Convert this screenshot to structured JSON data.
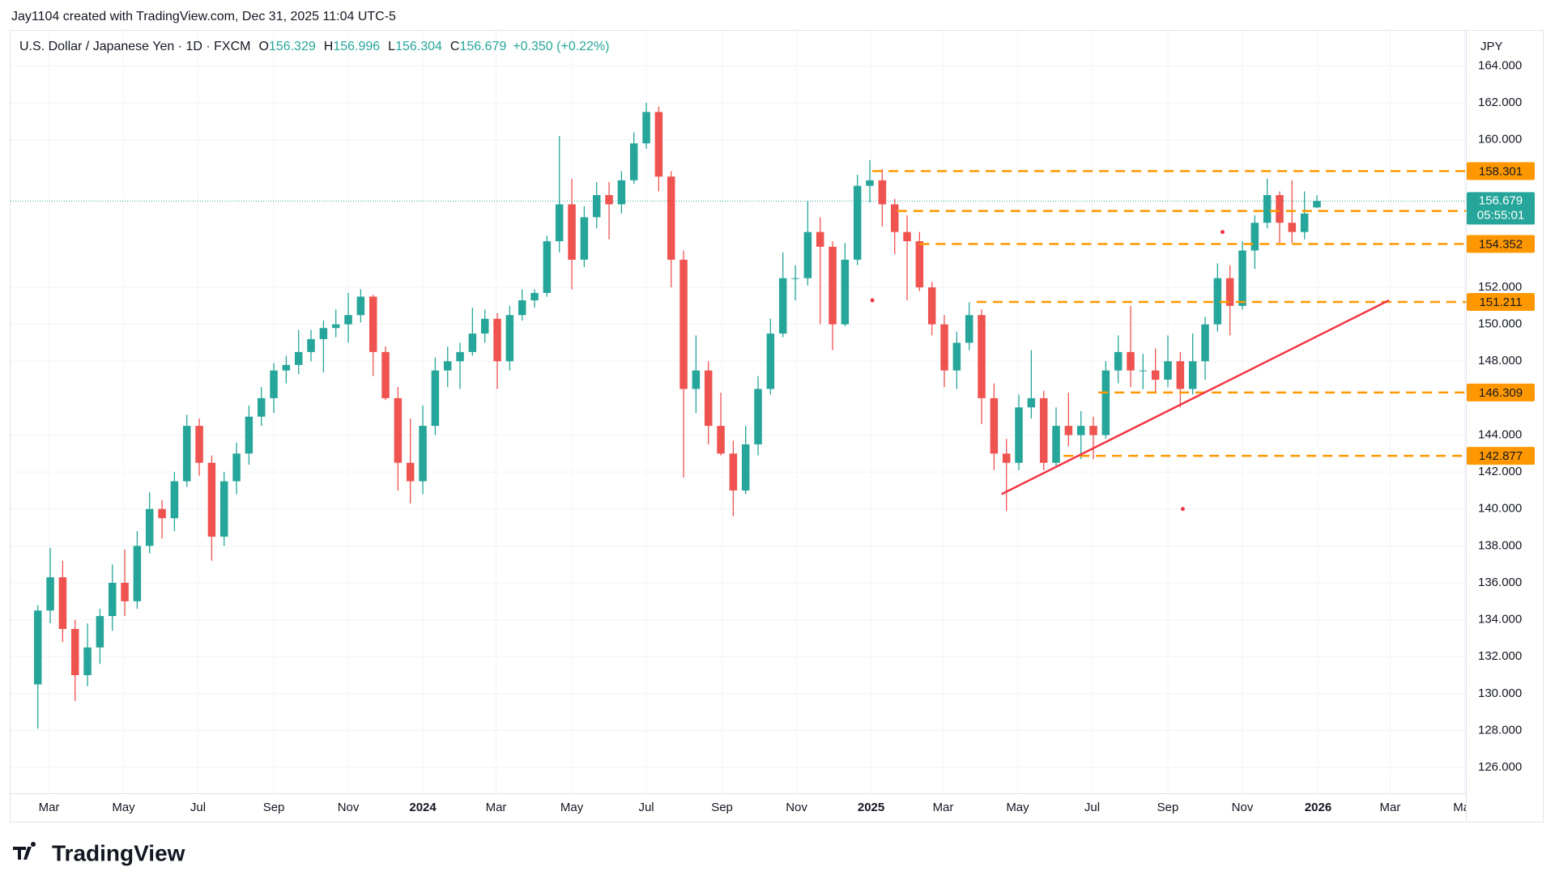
{
  "chart_data": {
    "type": "candlestick",
    "attribution": "Jay1104 created with TradingView.com, Dec 31, 2025 11:04 UTC-5",
    "title": "U.S. Dollar / Japanese Yen · 1D · FXCM",
    "ohlc": [
      {
        "label": "O",
        "value": 156.329
      },
      {
        "label": "H",
        "value": 156.996
      },
      {
        "label": "L",
        "value": 156.304
      },
      {
        "label": "C",
        "value": 156.679
      }
    ],
    "change_label": "+0.350 (+0.22%)",
    "currency": "JPY",
    "logo": "TradingView",
    "up_color": "#26a69a",
    "down_color": "#ef5350",
    "xlim": [
      -2.2,
      115
    ],
    "ylim": [
      124.6,
      165.9
    ],
    "xticks": [
      {
        "value": 0.9,
        "label": "Mar"
      },
      {
        "value": 6.9,
        "label": "May"
      },
      {
        "value": 12.9,
        "label": "Jul"
      },
      {
        "value": 19.0,
        "label": "Sep"
      },
      {
        "value": 25.0,
        "label": "Nov"
      },
      {
        "value": 31.0,
        "label": "2024"
      },
      {
        "value": 36.9,
        "label": "Mar"
      },
      {
        "value": 43.0,
        "label": "May"
      },
      {
        "value": 49.0,
        "label": "Jul"
      },
      {
        "value": 55.1,
        "label": "Sep"
      },
      {
        "value": 61.1,
        "label": "Nov"
      },
      {
        "value": 67.1,
        "label": "2025"
      },
      {
        "value": 72.9,
        "label": "Mar"
      },
      {
        "value": 78.9,
        "label": "May"
      },
      {
        "value": 84.9,
        "label": "Jul"
      },
      {
        "value": 91.0,
        "label": "Sep"
      },
      {
        "value": 97.0,
        "label": "Nov"
      },
      {
        "value": 103.1,
        "label": "2026"
      },
      {
        "value": 108.9,
        "label": "Mar"
      },
      {
        "value": 114.9,
        "label": "May"
      }
    ],
    "yticks": [
      {
        "value": 164,
        "label": "164.000"
      },
      {
        "value": 162,
        "label": "162.000"
      },
      {
        "value": 160,
        "label": "160.000"
      },
      {
        "value": 152,
        "label": "152.000"
      },
      {
        "value": 150,
        "label": "150.000"
      },
      {
        "value": 148,
        "label": "148.000"
      },
      {
        "value": 144,
        "label": "144.000"
      },
      {
        "value": 142,
        "label": "142.000"
      },
      {
        "value": 140,
        "label": "140.000"
      },
      {
        "value": 138,
        "label": "138.000"
      },
      {
        "value": 136,
        "label": "136.000"
      },
      {
        "value": 134,
        "label": "134.000"
      },
      {
        "value": 132,
        "label": "132.000"
      },
      {
        "value": 130,
        "label": "130.000"
      },
      {
        "value": 128,
        "label": "128.000"
      },
      {
        "value": 126,
        "label": "126.000"
      }
    ],
    "grid": true,
    "candles": [
      [
        130.5,
        134.8,
        128.1,
        134.5
      ],
      [
        134.5,
        137.9,
        133.8,
        136.3
      ],
      [
        136.3,
        137.2,
        132.8,
        133.5
      ],
      [
        133.5,
        134.0,
        129.6,
        131.0
      ],
      [
        131.0,
        133.8,
        130.4,
        132.5
      ],
      [
        132.5,
        134.6,
        131.6,
        134.2
      ],
      [
        134.2,
        137.0,
        133.4,
        136.0
      ],
      [
        136.0,
        137.8,
        134.2,
        135.0
      ],
      [
        135.0,
        138.8,
        134.6,
        138.0
      ],
      [
        138.0,
        140.9,
        137.6,
        140.0
      ],
      [
        140.0,
        140.5,
        138.4,
        139.5
      ],
      [
        139.5,
        142.0,
        138.8,
        141.5
      ],
      [
        141.5,
        145.1,
        141.2,
        144.5
      ],
      [
        144.5,
        144.9,
        141.8,
        142.5
      ],
      [
        142.5,
        142.9,
        137.2,
        138.5
      ],
      [
        138.5,
        142.0,
        138.0,
        141.5
      ],
      [
        141.5,
        143.6,
        140.8,
        143.0
      ],
      [
        143.0,
        145.6,
        142.4,
        145.0
      ],
      [
        145.0,
        146.6,
        144.5,
        146.0
      ],
      [
        146.0,
        147.9,
        145.2,
        147.5
      ],
      [
        147.5,
        148.3,
        146.8,
        147.8
      ],
      [
        147.8,
        149.7,
        147.3,
        148.5
      ],
      [
        148.5,
        149.7,
        148.0,
        149.2
      ],
      [
        149.2,
        150.2,
        147.4,
        149.8
      ],
      [
        149.8,
        150.8,
        149.3,
        150.0
      ],
      [
        150.0,
        151.7,
        149.0,
        150.5
      ],
      [
        150.5,
        151.9,
        150.1,
        151.5
      ],
      [
        151.5,
        151.6,
        147.2,
        148.5
      ],
      [
        148.5,
        148.8,
        145.9,
        146.0
      ],
      [
        146.0,
        146.6,
        141.0,
        142.5
      ],
      [
        142.5,
        144.9,
        140.3,
        141.5
      ],
      [
        141.5,
        145.6,
        140.8,
        144.5
      ],
      [
        144.5,
        148.2,
        144.0,
        147.5
      ],
      [
        147.5,
        148.8,
        146.6,
        148.0
      ],
      [
        148.0,
        149.0,
        146.5,
        148.5
      ],
      [
        148.5,
        150.9,
        148.3,
        149.5
      ],
      [
        149.5,
        150.8,
        149.0,
        150.3
      ],
      [
        150.3,
        150.6,
        146.5,
        148.0
      ],
      [
        148.0,
        151.0,
        147.5,
        150.5
      ],
      [
        150.5,
        151.9,
        150.2,
        151.3
      ],
      [
        151.3,
        151.9,
        150.9,
        151.7
      ],
      [
        151.7,
        154.8,
        151.5,
        154.5
      ],
      [
        154.5,
        160.2,
        153.9,
        156.5
      ],
      [
        156.5,
        157.9,
        151.9,
        153.5
      ],
      [
        153.5,
        156.4,
        153.1,
        155.8
      ],
      [
        155.8,
        157.7,
        155.2,
        157.0
      ],
      [
        157.0,
        157.7,
        154.6,
        156.5
      ],
      [
        156.5,
        158.3,
        156.0,
        157.8
      ],
      [
        157.8,
        160.4,
        157.6,
        159.8
      ],
      [
        159.8,
        162.0,
        159.5,
        161.5
      ],
      [
        161.5,
        161.8,
        157.2,
        158.0
      ],
      [
        158.0,
        158.3,
        152.0,
        153.5
      ],
      [
        153.5,
        154.0,
        141.7,
        146.5
      ],
      [
        146.5,
        149.4,
        145.2,
        147.5
      ],
      [
        147.5,
        148.0,
        143.5,
        144.5
      ],
      [
        144.5,
        146.3,
        142.9,
        143.0
      ],
      [
        143.0,
        143.7,
        139.6,
        141.0
      ],
      [
        141.0,
        144.5,
        140.8,
        143.5
      ],
      [
        143.5,
        147.2,
        142.9,
        146.5
      ],
      [
        146.5,
        150.3,
        146.2,
        149.5
      ],
      [
        149.5,
        153.9,
        149.3,
        152.5
      ],
      [
        152.5,
        153.2,
        151.3,
        152.5
      ],
      [
        152.5,
        156.7,
        152.1,
        155.0
      ],
      [
        155.0,
        155.8,
        150.0,
        154.2
      ],
      [
        154.2,
        154.5,
        148.6,
        150.0
      ],
      [
        150.0,
        154.4,
        149.9,
        153.5
      ],
      [
        153.5,
        158.1,
        153.2,
        157.5
      ],
      [
        157.5,
        158.9,
        156.6,
        157.8
      ],
      [
        157.8,
        158.4,
        155.3,
        156.5
      ],
      [
        156.5,
        156.8,
        153.8,
        155.0
      ],
      [
        155.0,
        155.9,
        151.3,
        154.5
      ],
      [
        154.5,
        155.0,
        151.8,
        152.0
      ],
      [
        152.0,
        152.3,
        149.4,
        150.0
      ],
      [
        150.0,
        150.5,
        146.6,
        147.5
      ],
      [
        147.5,
        149.6,
        146.5,
        149.0
      ],
      [
        149.0,
        151.2,
        148.6,
        150.5
      ],
      [
        150.5,
        150.8,
        144.6,
        146.0
      ],
      [
        146.0,
        146.8,
        142.1,
        143.0
      ],
      [
        143.0,
        143.8,
        139.9,
        142.5
      ],
      [
        142.5,
        146.2,
        142.1,
        145.5
      ],
      [
        145.5,
        148.6,
        144.9,
        146.0
      ],
      [
        146.0,
        146.4,
        142.1,
        142.5
      ],
      [
        142.5,
        145.5,
        142.3,
        144.5
      ],
      [
        144.5,
        146.3,
        143.4,
        144.0
      ],
      [
        144.0,
        145.3,
        142.7,
        144.5
      ],
      [
        144.5,
        145.0,
        142.7,
        144.0
      ],
      [
        144.0,
        148.0,
        143.8,
        147.5
      ],
      [
        147.5,
        149.4,
        146.8,
        148.5
      ],
      [
        148.5,
        151.0,
        146.6,
        147.5
      ],
      [
        147.5,
        148.4,
        146.5,
        147.5
      ],
      [
        147.5,
        148.7,
        146.3,
        147.0
      ],
      [
        147.0,
        149.4,
        146.6,
        148.0
      ],
      [
        148.0,
        148.5,
        145.5,
        146.5
      ],
      [
        146.5,
        149.5,
        146.2,
        148.0
      ],
      [
        148.0,
        150.4,
        147.0,
        150.0
      ],
      [
        150.0,
        153.3,
        149.6,
        152.5
      ],
      [
        152.5,
        153.2,
        149.4,
        151.0
      ],
      [
        151.0,
        154.5,
        150.8,
        154.0
      ],
      [
        154.0,
        155.9,
        153.0,
        155.5
      ],
      [
        155.5,
        157.9,
        155.2,
        157.0
      ],
      [
        157.0,
        157.2,
        154.4,
        155.5
      ],
      [
        155.5,
        157.8,
        154.4,
        155.0
      ],
      [
        155.0,
        157.2,
        154.6,
        156.0
      ],
      [
        156.329,
        156.996,
        156.304,
        156.679
      ]
    ],
    "levels": [
      {
        "value": 158.301,
        "x0": 67.2
      },
      {
        "value": 156.138,
        "x0": 69.2
      },
      {
        "value": 154.352,
        "x0": 71.0
      },
      {
        "value": 151.211,
        "x0": 75.6
      },
      {
        "value": 146.309,
        "x0": 85.4
      },
      {
        "value": 142.877,
        "x0": 82.6
      }
    ],
    "level_color": "#ff9800",
    "last_price": 156.679,
    "countdown": "05:55:01",
    "trendline": {
      "x": [
        77.6,
        108.8
      ],
      "y": [
        140.8,
        151.3
      ],
      "color": "#f23645"
    },
    "markers": {
      "x": [
        67.2,
        95.4,
        92.2
      ],
      "y": [
        151.3,
        155.0,
        140.0
      ],
      "color": "#f23645"
    }
  }
}
